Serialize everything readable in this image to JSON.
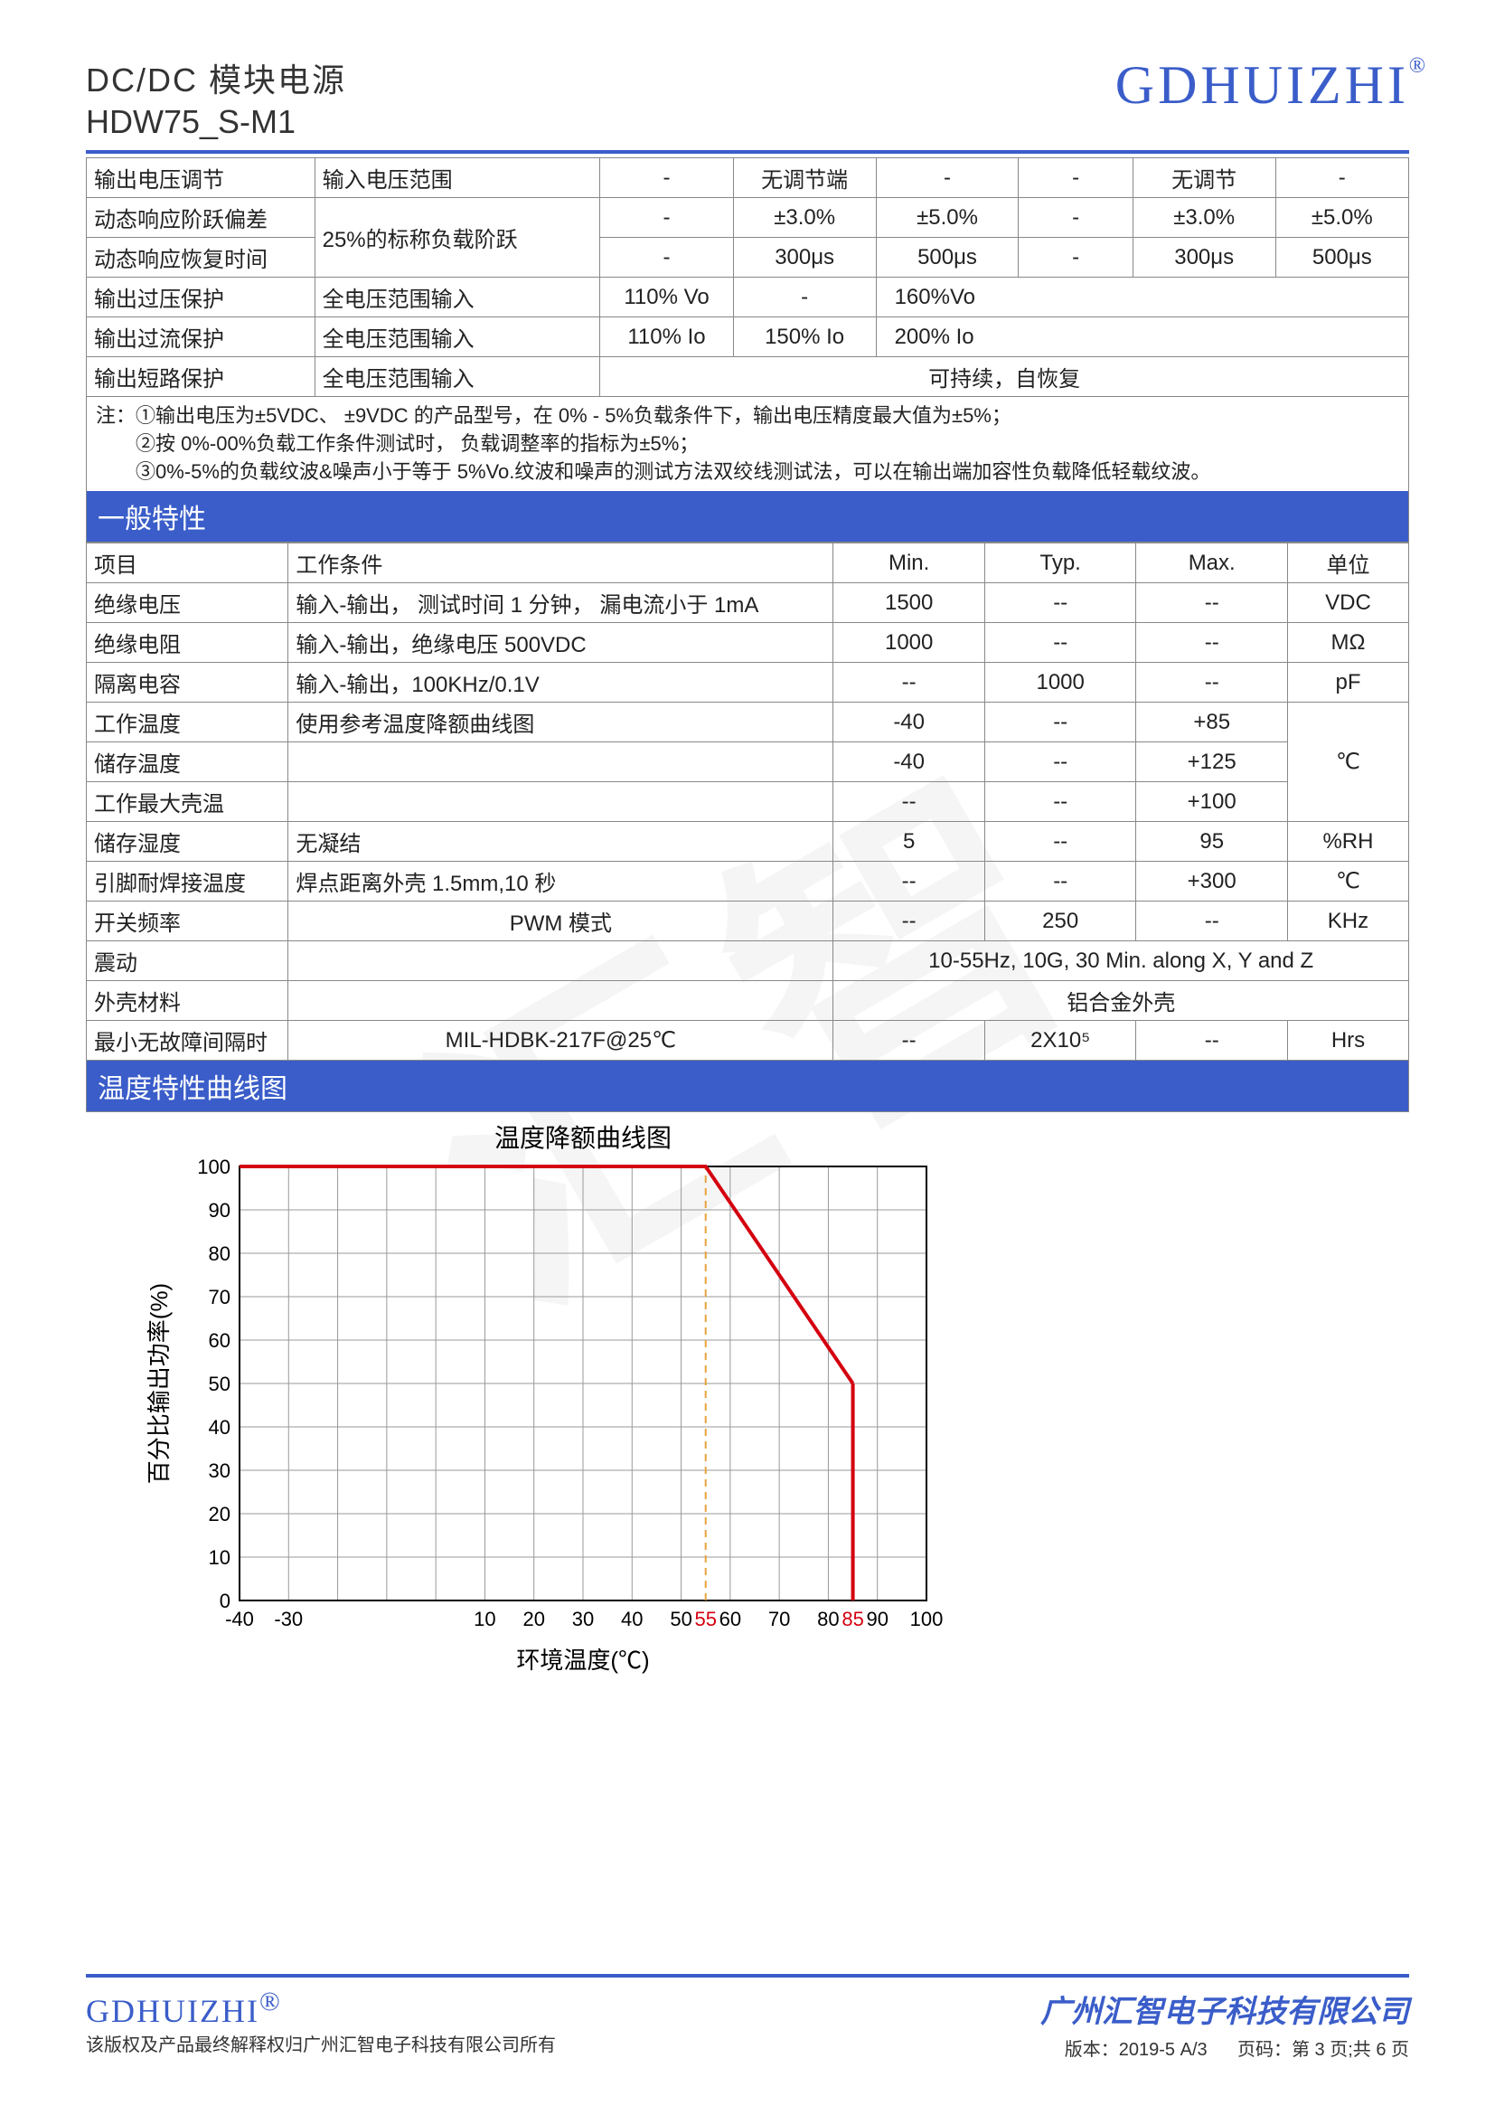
{
  "header": {
    "title1": "DC/DC 模块电源",
    "title2": "HDW75_S-M1",
    "brand": "GDHUIZHI",
    "reg": "®"
  },
  "table1": {
    "rows": [
      {
        "c1": "输出电压调节",
        "c2": "输入电压范围",
        "c3": "-",
        "c4": "无调节端",
        "c5": "-",
        "c6": "-",
        "c7": "无调节",
        "c8": "-"
      },
      {
        "c1": "动态响应阶跃偏差",
        "c2": "",
        "c3": "-",
        "c4": "±3.0%",
        "c5": "±5.0%",
        "c6": "-",
        "c7": "±3.0%",
        "c8": "±5.0%"
      },
      {
        "c1": "动态响应恢复时间",
        "c2": "25%的标称负载阶跃",
        "c3": "-",
        "c4": "300μs",
        "c5": "500μs",
        "c6": "-",
        "c7": "300μs",
        "c8": "500μs"
      },
      {
        "c1": "输出过压保护",
        "c2": "全电压范围输入",
        "c3": "110% Vo",
        "c4": "-",
        "c5": "160%Vo",
        "c6": "",
        "c7": "",
        "c8": ""
      },
      {
        "c1": "输出过流保护",
        "c2": "全电压范围输入",
        "c3": "110% Io",
        "c4": "150% Io",
        "c5": "200% Io",
        "c6": "",
        "c7": "",
        "c8": ""
      },
      {
        "c1": "输出短路保护",
        "c2": "全电压范围输入",
        "c3": "",
        "c4": "",
        "c5": "可持续，自恢复",
        "c6": "",
        "c7": "",
        "c8": ""
      }
    ]
  },
  "notes": {
    "l1": "注：①输出电压为±5VDC、 ±9VDC 的产品型号，在 0% - 5%负载条件下，输出电压精度最大值为±5%；",
    "l2": "　　②按 0%-00%负载工作条件测试时， 负载调整率的指标为±5%；",
    "l3": "　　③0%-5%的负载纹波&噪声小于等于 5%Vo.纹波和噪声的测试方法双绞线测试法，可以在输出端加容性负载降低轻载纹波。"
  },
  "sec2_title": "一般特性",
  "t2head": {
    "c1": "项目",
    "c2": "工作条件",
    "min": "Min.",
    "typ": "Typ.",
    "max": "Max.",
    "unit": "单位"
  },
  "t2rows": [
    {
      "c1": "绝缘电压",
      "c2": "输入-输出， 测试时间 1 分钟， 漏电流小于 1mA",
      "min": "1500",
      "typ": "--",
      "max": "--",
      "unit": "VDC"
    },
    {
      "c1": "绝缘电阻",
      "c2": "输入-输出，绝缘电压 500VDC",
      "min": "1000",
      "typ": "--",
      "max": "--",
      "unit": "MΩ"
    },
    {
      "c1": "隔离电容",
      "c2": "输入-输出，100KHz/0.1V",
      "min": "--",
      "typ": "1000",
      "max": "--",
      "unit": "pF"
    },
    {
      "c1": "工作温度",
      "c2": "使用参考温度降额曲线图",
      "min": "-40",
      "typ": "--",
      "max": "+85",
      "unit": ""
    },
    {
      "c1": "储存温度",
      "c2": "",
      "min": "-40",
      "typ": "--",
      "max": "+125",
      "unit": "℃"
    },
    {
      "c1": "工作最大壳温",
      "c2": "",
      "min": "--",
      "typ": "--",
      "max": "+100",
      "unit": ""
    },
    {
      "c1": "储存湿度",
      "c2": "无凝结",
      "min": "5",
      "typ": "--",
      "max": "95",
      "unit": "%RH"
    },
    {
      "c1": "引脚耐焊接温度",
      "c2": "焊点距离外壳 1.5mm,10 秒",
      "min": "--",
      "typ": "--",
      "max": "+300",
      "unit": "℃"
    },
    {
      "c1": "开关频率",
      "c2": "PWM 模式",
      "min": "--",
      "typ": "250",
      "max": "--",
      "unit": "KHz"
    },
    {
      "c1": "震动",
      "c2": "",
      "min": "",
      "typ": "",
      "max": "",
      "unit": "",
      "merged": "10-55Hz, 10G, 30 Min. along X, Y and Z"
    },
    {
      "c1": "外壳材料",
      "c2": "",
      "min": "",
      "typ": "",
      "max": "",
      "unit": "",
      "merged": "铝合金外壳"
    },
    {
      "c1": "最小无故障间隔时",
      "c2": "MIL-HDBK-217F@25℃",
      "min": "--",
      "typ": "2X10⁵",
      "max": "--",
      "unit": "Hrs"
    }
  ],
  "chart_sec_title": "温度特性曲线图",
  "chart": {
    "title": "温度降额曲线图",
    "ylabel": "百分比输出功率(%)",
    "xlabel": "环境温度(℃)",
    "xticks": [
      "-40",
      "-30",
      "",
      "10",
      "20",
      "30",
      "40",
      "50",
      "55",
      "60",
      "70",
      "80",
      "85",
      "90",
      "100"
    ],
    "yticks": [
      "0",
      "10",
      "20",
      "30",
      "40",
      "50",
      "60",
      "70",
      "80",
      "90",
      "100"
    ],
    "line_color": "#d4000f",
    "dash_color": "#e8a23d",
    "grid_color": "#999999",
    "bg": "#ffffff",
    "points": [
      [
        -40,
        100
      ],
      [
        55,
        100
      ],
      [
        85,
        50
      ]
    ],
    "vline_x": 55,
    "xlim": [
      -40,
      100
    ],
    "ylim": [
      0,
      100
    ]
  },
  "footer": {
    "brand": "GDHUIZHI",
    "reg": "®",
    "note": "该版权及产品最终解释权归广州汇智电子科技有限公司所有",
    "company": "广州汇智电子科技有限公司",
    "version_label": "版本：",
    "version": "2019-5 A/3",
    "page_label": "页码：",
    "page": "第 3 页;共 6 页"
  }
}
